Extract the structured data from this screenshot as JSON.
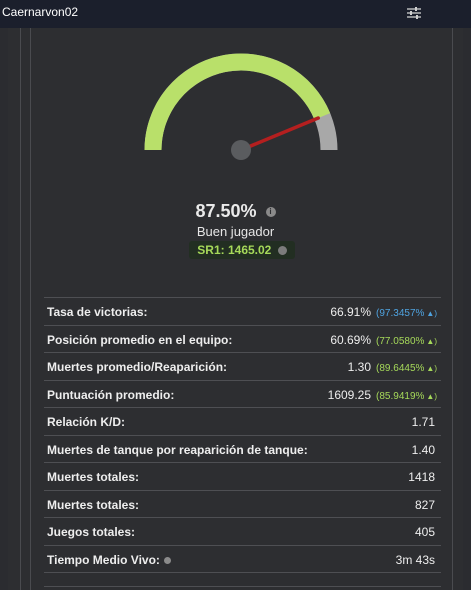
{
  "header": {
    "title": "Caernarvon02",
    "filter_icon": "sliders-icon"
  },
  "gauge": {
    "fraction": 0.875,
    "fill_color": "#b9e06a",
    "track_color": "#a8a8a8",
    "needle_color": "#b41f1f"
  },
  "summary": {
    "percent": "87.50%",
    "rank_label": "Buen jugador",
    "sr": "SR1: 1465.02"
  },
  "stats": [
    {
      "label": "Tasa de victorias:",
      "value": "66.91%",
      "percentile": "(97.3457%",
      "arrow": "▲)",
      "color": "#4fa3e0"
    },
    {
      "label": "Posición promedio en el equipo:",
      "value": "60.69%",
      "percentile": "(77.0580%",
      "arrow": "▲)",
      "color": "#a6d95a"
    },
    {
      "label": "Muertes promedio/Reaparición:",
      "value": "1.30",
      "percentile": "(89.6445%",
      "arrow": "▲)",
      "color": "#a6d95a"
    },
    {
      "label": "Puntuación promedio:",
      "value": "1609.25",
      "percentile": "(85.9419%",
      "arrow": "▲)",
      "color": "#a6d95a"
    },
    {
      "label": "Relación K/D:",
      "value": "1.71"
    },
    {
      "label": "Muertes de tanque por reaparición de tanque:",
      "value": "1.40"
    },
    {
      "label": "Muertes totales:",
      "value": "1418"
    },
    {
      "label": "Muertes totales:",
      "value": "827"
    },
    {
      "label": "Juegos totales:",
      "value": "405"
    },
    {
      "label": "Tiempo Medio Vivo:",
      "value": "3m 43s",
      "has_info": true
    }
  ]
}
